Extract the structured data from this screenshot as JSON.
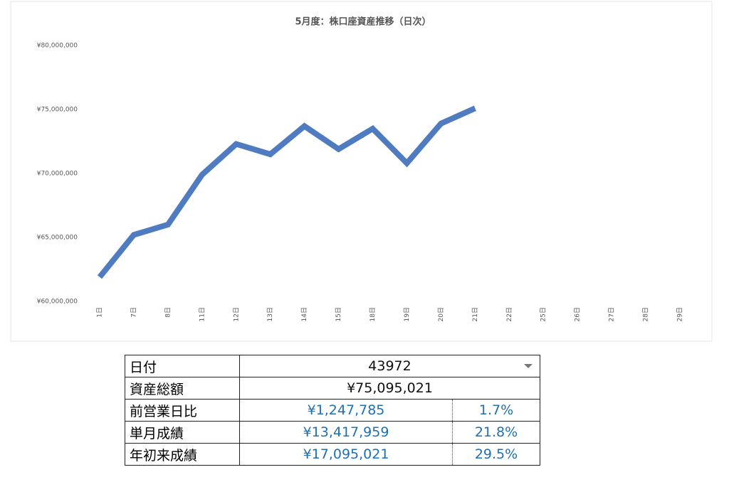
{
  "chart_data": {
    "type": "line",
    "title": "5月度：株口座資産推移（日次）",
    "categories": [
      "1日",
      "7日",
      "8日",
      "11日",
      "12日",
      "13日",
      "14日",
      "15日",
      "18日",
      "19日",
      "20日",
      "21日",
      "22日",
      "25日",
      "26日",
      "27日",
      "28日",
      "29日"
    ],
    "series": [
      {
        "color": "#4f7cc0",
        "values": [
          61900000,
          65200000,
          66000000,
          69900000,
          72300000,
          71500000,
          73700000,
          71900000,
          73500000,
          70800000,
          73900000,
          75095021,
          null,
          null,
          null,
          null,
          null,
          null
        ]
      }
    ],
    "ylim": [
      60000000,
      80000000
    ],
    "yticks": [
      {
        "value": 60000000,
        "label": "¥60,000,000"
      },
      {
        "value": 65000000,
        "label": "¥65,000,000"
      },
      {
        "value": 70000000,
        "label": "¥70,000,000"
      },
      {
        "value": 75000000,
        "label": "¥75,000,000"
      },
      {
        "value": 80000000,
        "label": "¥80,000,000"
      }
    ],
    "grid": false
  },
  "table": {
    "rows": [
      [
        "日付",
        "43972"
      ],
      [
        "資産総額",
        "¥75,095,021"
      ],
      [
        "前営業日比",
        "¥1,247,785",
        "1.7%"
      ],
      [
        "単月成績",
        "¥13,417,959",
        "21.8%"
      ],
      [
        "年初来成績",
        "¥17,095,021",
        "29.5%"
      ]
    ]
  }
}
